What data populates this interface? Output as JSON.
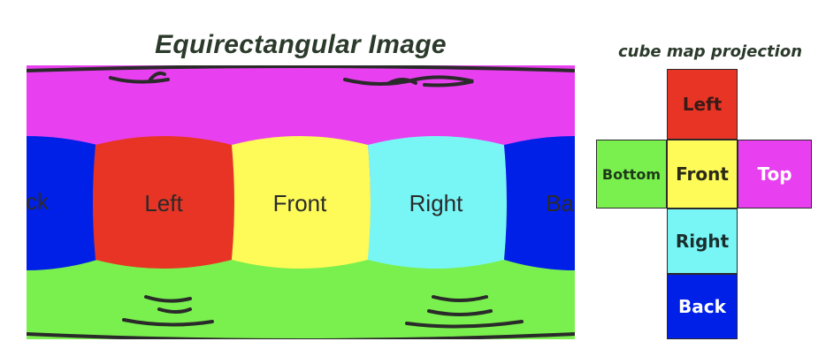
{
  "titles": {
    "equirect": "Equirectangular Image",
    "cube": "cube map projection"
  },
  "equirect": {
    "bands": {
      "top_color": "#E840F0",
      "bottom_color": "#7AF04E"
    },
    "faces": [
      {
        "label": "ck",
        "color": "#0020E8"
      },
      {
        "label": "Left",
        "color": "#E83424"
      },
      {
        "label": "Front",
        "color": "#FEFA58"
      },
      {
        "label": "Right",
        "color": "#78F6F6"
      },
      {
        "label": "Ba",
        "color": "#0020E8"
      }
    ]
  },
  "cube_map": {
    "faces": [
      {
        "key": "left",
        "label": "Left",
        "color": "#E83424",
        "text_color": "#3a1a16"
      },
      {
        "key": "bottom",
        "label": "Bottom",
        "color": "#7AF04E",
        "text_color": "#1f3a1a"
      },
      {
        "key": "front",
        "label": "Front",
        "color": "#FEFA58",
        "text_color": "#2a2a18"
      },
      {
        "key": "top",
        "label": "Top",
        "color": "#E840F0",
        "text_color": "#ffffff"
      },
      {
        "key": "right",
        "label": "Right",
        "color": "#78F6F6",
        "text_color": "#1a2e2e"
      },
      {
        "key": "back",
        "label": "Back",
        "color": "#0020E8",
        "text_color": "#ffffff"
      }
    ]
  }
}
